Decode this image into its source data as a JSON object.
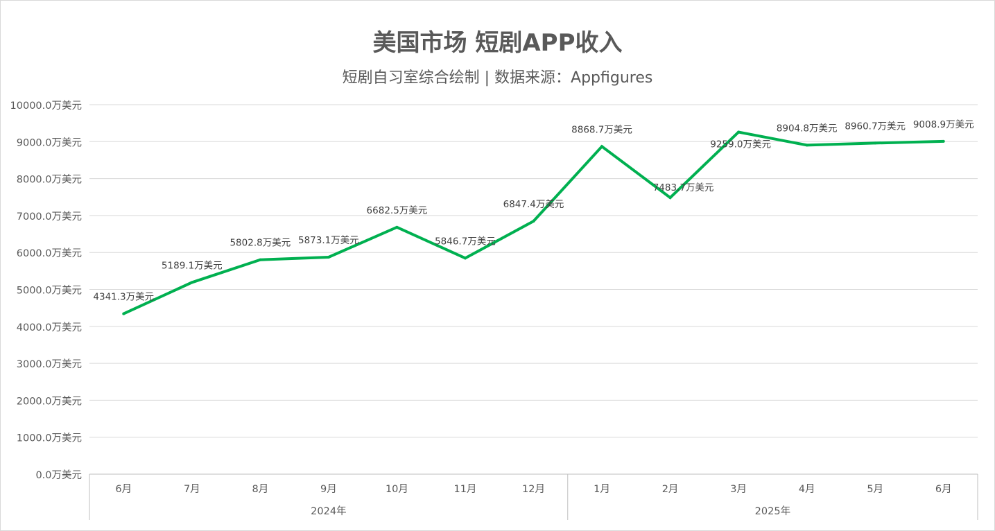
{
  "chart_data": {
    "type": "line",
    "title": "美国市场 短剧APP收入",
    "subtitle": "短剧自习室综合绘制 | 数据来源：Appfigures",
    "categories": [
      "6月",
      "7月",
      "8月",
      "9月",
      "10月",
      "11月",
      "12月",
      "1月",
      "2月",
      "3月",
      "4月",
      "5月",
      "6月"
    ],
    "category_groups": [
      {
        "label": "2024年",
        "count": 7
      },
      {
        "label": "2025年",
        "count": 6
      }
    ],
    "series": [
      {
        "name": "收入",
        "color": "#00b050",
        "values": [
          4341.3,
          5189.1,
          5802.8,
          5873.1,
          6682.5,
          5846.7,
          6847.4,
          8868.7,
          7483.7,
          9259.0,
          8904.8,
          8960.7,
          9008.9
        ]
      }
    ],
    "value_suffix": "万美元",
    "ylim": [
      0,
      10000
    ],
    "yticks": [
      0,
      1000,
      2000,
      3000,
      4000,
      5000,
      6000,
      7000,
      8000,
      9000,
      10000
    ],
    "ytick_labels": [
      "0.0万美元",
      "1000.0万美元",
      "2000.0万美元",
      "3000.0万美元",
      "4000.0万美元",
      "5000.0万美元",
      "6000.0万美元",
      "7000.0万美元",
      "8000.0万美元",
      "9000.0万美元",
      "10000.0万美元"
    ],
    "grid": true,
    "legend": "none"
  }
}
